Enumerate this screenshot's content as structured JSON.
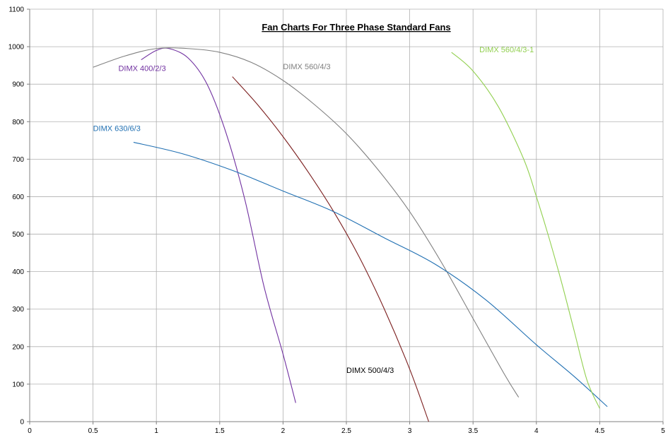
{
  "chart_data": {
    "type": "line",
    "title": "Fan Charts For Three Phase Standard Fans",
    "xlabel": "",
    "ylabel": "",
    "xlim": [
      0,
      5
    ],
    "ylim": [
      0,
      1100
    ],
    "grid": true,
    "x_ticks": [
      "0",
      "0.5",
      "1",
      "1.5",
      "2",
      "2.5",
      "3",
      "3.5",
      "4",
      "4.5",
      "5"
    ],
    "y_ticks": [
      "0",
      "100",
      "200",
      "300",
      "400",
      "500",
      "600",
      "700",
      "800",
      "900",
      "1000",
      "1100"
    ],
    "series": [
      {
        "name": "DIMX 400/2/3",
        "color": "#7030a0",
        "x": [
          0.88,
          1.0,
          1.1,
          1.25,
          1.4,
          1.55,
          1.7,
          1.85,
          2.0,
          2.1
        ],
        "y": [
          965,
          990,
          995,
          970,
          900,
          770,
          590,
          360,
          180,
          50
        ]
      },
      {
        "name": "DIMX 560/4/3",
        "color": "#808080",
        "x": [
          0.5,
          0.75,
          1.0,
          1.25,
          1.5,
          1.75,
          2.0,
          2.25,
          2.5,
          2.75,
          3.0,
          3.25,
          3.5,
          3.75,
          3.86
        ],
        "y": [
          945,
          975,
          995,
          995,
          985,
          958,
          910,
          845,
          768,
          672,
          560,
          425,
          275,
          125,
          65
        ]
      },
      {
        "name": "DIMX 500/4/3",
        "color": "#7b1e1e",
        "x": [
          1.6,
          1.8,
          2.0,
          2.2,
          2.4,
          2.6,
          2.8,
          3.0,
          3.15
        ],
        "y": [
          920,
          845,
          760,
          665,
          560,
          440,
          300,
          140,
          0
        ]
      },
      {
        "name": "DIMX 630/6/3",
        "color": "#1f6fb2",
        "x": [
          0.82,
          1.2,
          1.6,
          2.0,
          2.4,
          2.8,
          3.2,
          3.6,
          4.0,
          4.3,
          4.56
        ],
        "y": [
          745,
          715,
          670,
          615,
          560,
          490,
          420,
          325,
          205,
          120,
          40
        ]
      },
      {
        "name": "DIMX 560/4/3-1",
        "color": "#92d050",
        "x": [
          3.33,
          3.5,
          3.7,
          3.9,
          4.0,
          4.1,
          4.2,
          4.3,
          4.4,
          4.5
        ],
        "y": [
          985,
          935,
          840,
          700,
          600,
          490,
          370,
          240,
          110,
          35
        ]
      }
    ],
    "annotations": [
      {
        "text": "DIMX 400/2/3",
        "color": "#7030a0",
        "x": 0.7,
        "y": 935
      },
      {
        "text": "DIMX 560/4/3",
        "color": "#808080",
        "x": 2.0,
        "y": 940
      },
      {
        "text": "DIMX 500/4/3",
        "color": "#000000",
        "x": 2.5,
        "y": 130
      },
      {
        "text": "DIMX 630/6/3",
        "color": "#1f6fb2",
        "x": 0.5,
        "y": 775
      },
      {
        "text": "DIMX 560/4/3-1",
        "color": "#92d050",
        "x": 3.55,
        "y": 985
      }
    ]
  }
}
